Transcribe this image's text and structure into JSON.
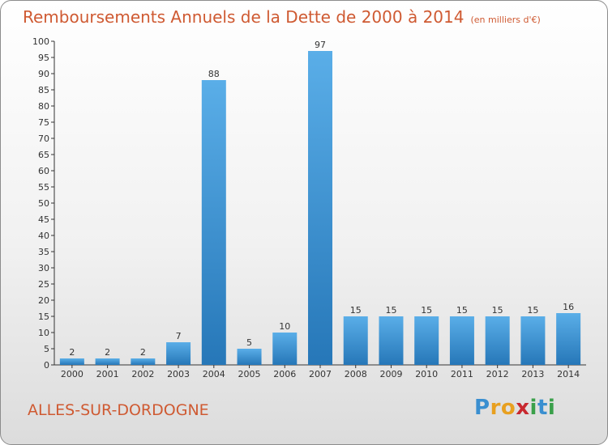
{
  "chart_data": {
    "type": "bar",
    "title": "Remboursements Annuels de la Dette de 2000 à 2014",
    "subtitle": "(en milliers d'€)",
    "categories": [
      "2000",
      "2001",
      "2002",
      "2003",
      "2004",
      "2005",
      "2006",
      "2007",
      "2008",
      "2009",
      "2010",
      "2011",
      "2012",
      "2013",
      "2014"
    ],
    "values": [
      2,
      2,
      2,
      7,
      88,
      5,
      10,
      97,
      15,
      15,
      15,
      15,
      15,
      15,
      16
    ],
    "ylim": [
      0,
      100
    ],
    "ytick_step": 5,
    "grid": false,
    "bar_color": "#3a92d8"
  },
  "commune": "ALLES-SUR-DORDOGNE",
  "logo": {
    "letters": [
      "P",
      "r",
      "o",
      "x",
      "i",
      "t",
      "i"
    ],
    "colors": [
      "#3a8fd0",
      "#e8a020",
      "#e8a020",
      "#c8282f",
      "#3aa04a",
      "#3a8fd0",
      "#3aa04a"
    ]
  },
  "colors": {
    "title": "#cf5a32",
    "axis": "#333333"
  }
}
